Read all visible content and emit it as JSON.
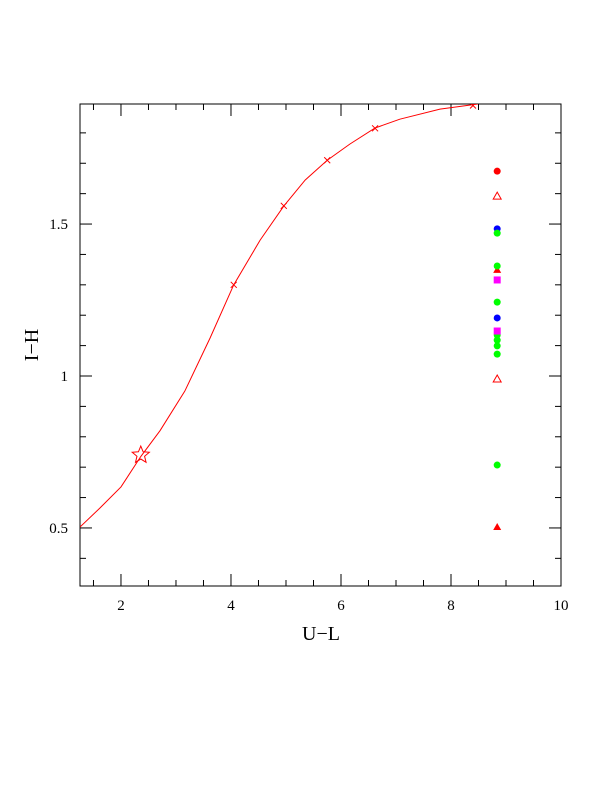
{
  "chart_data": {
    "type": "scatter",
    "xlabel": "U−L",
    "ylabel": "I−H",
    "xlim": [
      1.255,
      10
    ],
    "ylim": [
      0.309,
      1.895
    ],
    "xticks": [
      2,
      4,
      6,
      8,
      10
    ],
    "yticks": [
      0.5,
      1,
      1.5
    ],
    "xminorticks": [
      1.5,
      2.5,
      3,
      3.5,
      4.5,
      5,
      5.5,
      6.5,
      7,
      7.5,
      8.5,
      9,
      9.5
    ],
    "yminorticks": [
      0.4,
      0.6,
      0.7,
      0.8,
      0.9,
      1.1,
      1.2,
      1.3,
      1.4,
      1.6,
      1.7,
      1.8
    ],
    "series": [
      {
        "marker": "none",
        "color": "#ff0000",
        "x": [
          1.255,
          1.62,
          2,
          2.36,
          2.71,
          3.16,
          3.62,
          4.05,
          4.53,
          4.96,
          5.35,
          5.75,
          6.16,
          6.62,
          7.07,
          7.8,
          8.49
        ],
        "values": [
          0.503,
          0.566,
          0.635,
          0.735,
          0.82,
          0.95,
          1.125,
          1.3,
          1.447,
          1.559,
          1.645,
          1.71,
          1.763,
          1.816,
          1.845,
          1.878,
          1.895
        ]
      },
      {
        "marker": "x",
        "color": "#ff0000",
        "x": [
          4.05,
          4.96,
          5.75,
          6.62,
          8.4
        ],
        "values": [
          1.3,
          1.56,
          1.71,
          1.815,
          1.89
        ]
      },
      {
        "marker": "star",
        "color": "#ff0000",
        "x": [
          2.36
        ],
        "values": [
          0.74
        ]
      },
      {
        "marker": "circle",
        "color": "#ff0000",
        "x": [
          8.84
        ],
        "values": [
          1.674
        ]
      },
      {
        "marker": "triangle-open",
        "color": "#ff0000",
        "x": [
          8.84,
          8.84
        ],
        "values": [
          1.592,
          0.99
        ]
      },
      {
        "marker": "triangle",
        "color": "#ff0000",
        "x": [
          8.84,
          8.84
        ],
        "values": [
          1.349,
          0.503
        ]
      },
      {
        "marker": "circle",
        "color": "#0000ff",
        "x": [
          8.84,
          8.84
        ],
        "values": [
          1.484,
          1.191
        ]
      },
      {
        "marker": "circle",
        "color": "#00ff00",
        "x": [
          8.84,
          8.84,
          8.84,
          8.84,
          8.84,
          8.84,
          8.84,
          8.84
        ],
        "values": [
          1.47,
          1.362,
          1.243,
          1.135,
          1.118,
          1.099,
          1.072,
          0.707
        ]
      },
      {
        "marker": "square",
        "color": "#ff00ff",
        "x": [
          8.84,
          8.84
        ],
        "values": [
          1.316,
          1.148
        ]
      }
    ]
  }
}
